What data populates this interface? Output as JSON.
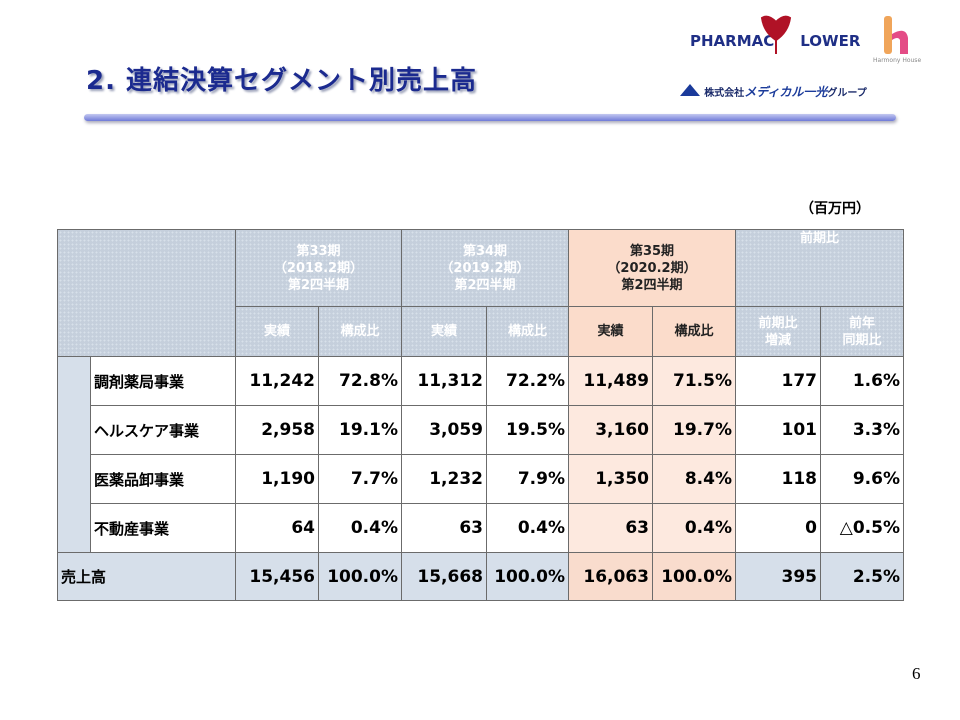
{
  "header": {
    "title": "2. 連結決算セグメント別売上高",
    "logo": {
      "brand_left": "PHARMAC",
      "brand_right": "LOWER",
      "sub": "Harmony House",
      "company_prefix": "株式会社",
      "company": "メディカル一光",
      "company_suffix": "グループ"
    }
  },
  "unit": "（百万円）",
  "table": {
    "periods": [
      {
        "lines": [
          "第33期",
          "（2018.2期）",
          "第2四半期"
        ]
      },
      {
        "lines": [
          "第34期",
          "（2019.2期）",
          "第2四半期"
        ]
      },
      {
        "lines": [
          "第35期",
          "（2020.2期）",
          "第2四半期"
        ]
      }
    ],
    "comparison": "前期比",
    "subheaders": [
      [
        "実績"
      ],
      [
        "構成比"
      ],
      [
        "実績"
      ],
      [
        "構成比"
      ],
      [
        "実績"
      ],
      [
        "構成比"
      ],
      [
        "前期比",
        "増減"
      ],
      [
        "前年",
        "同期比"
      ]
    ],
    "rows": [
      {
        "label": "調剤薬局事業",
        "cells": [
          "11,242",
          "72.8%",
          "11,312",
          "72.2%",
          "11,489",
          "71.5%",
          "177",
          "1.6%"
        ]
      },
      {
        "label": "ヘルスケア事業",
        "cells": [
          "2,958",
          "19.1%",
          "3,059",
          "19.5%",
          "3,160",
          "19.7%",
          "101",
          "3.3%"
        ]
      },
      {
        "label": "医薬品卸事業",
        "cells": [
          "1,190",
          "7.7%",
          "1,232",
          "7.9%",
          "1,350",
          "8.4%",
          "118",
          "9.6%"
        ]
      },
      {
        "label": "不動産事業",
        "cells": [
          "64",
          "0.4%",
          "63",
          "0.4%",
          "63",
          "0.4%",
          "0",
          "△0.5%"
        ]
      }
    ],
    "total": {
      "label": "売上高",
      "cells": [
        "15,456",
        "100.0%",
        "15,668",
        "100.0%",
        "16,063",
        "100.0%",
        "395",
        "2.5%"
      ]
    }
  },
  "page_number": "6"
}
